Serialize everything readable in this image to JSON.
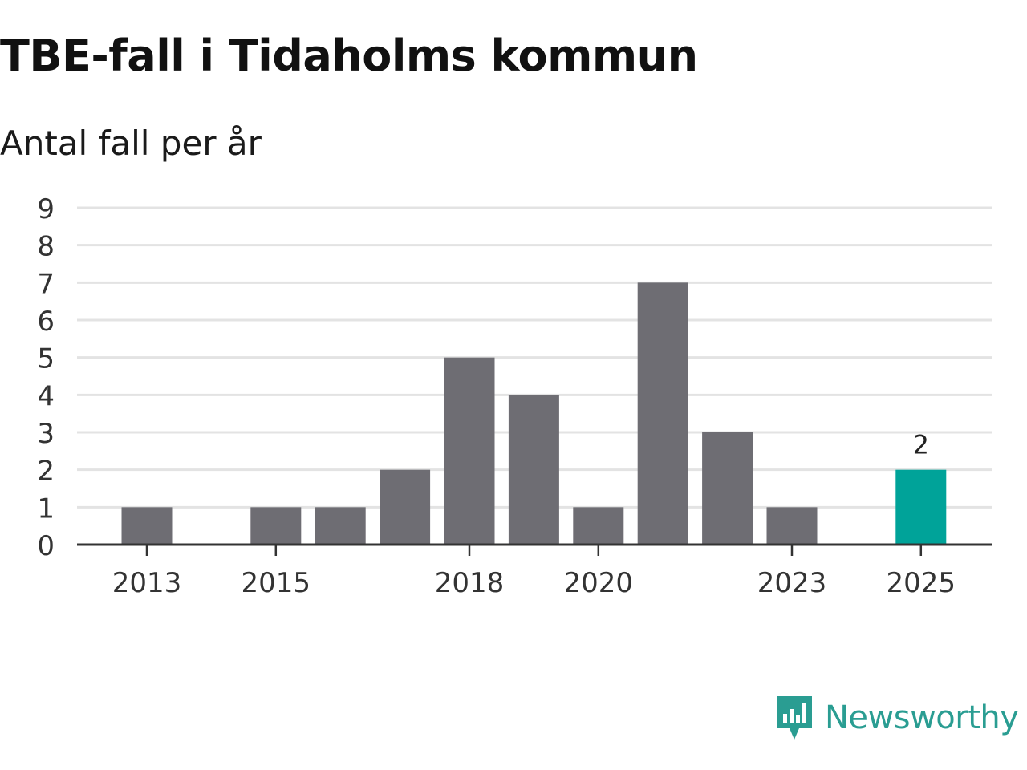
{
  "title": "TBE-fall i Tidaholms kommun",
  "subtitle": "Antal fall per år",
  "brand": {
    "name": "Newsworthy",
    "icon": "newsworthy-logo-icon",
    "color": "#2a9d92"
  },
  "colors": {
    "bar": "#6e6d73",
    "highlight": "#00a399",
    "grid": "#e3e3e3",
    "axis": "#333333",
    "text": "#333333"
  },
  "chart_data": {
    "type": "bar",
    "title": "TBE-fall i Tidaholms kommun",
    "subtitle": "Antal fall per år",
    "xlabel": "",
    "ylabel": "",
    "categories": [
      "2013",
      "2014",
      "2015",
      "2016",
      "2017",
      "2018",
      "2019",
      "2020",
      "2021",
      "2022",
      "2023",
      "2024",
      "2025"
    ],
    "values": [
      1,
      0,
      1,
      1,
      2,
      5,
      4,
      1,
      7,
      3,
      1,
      0,
      2
    ],
    "highlight_index": 12,
    "highlight_label": "2",
    "x_tick_labels": [
      "2013",
      "2015",
      "2018",
      "2020",
      "2023",
      "2025"
    ],
    "y_ticks": [
      0,
      1,
      2,
      3,
      4,
      5,
      6,
      7,
      8,
      9
    ],
    "ylim": [
      0,
      9
    ],
    "grid": true,
    "legend": "none"
  }
}
